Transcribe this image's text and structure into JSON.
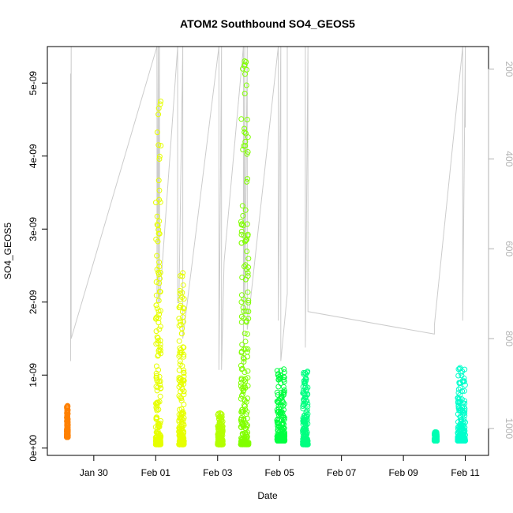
{
  "chart_data": {
    "type": "scatter",
    "title": "ATOM2 Southbound SO4_GEOS5",
    "xlabel": "Date",
    "ylabel": "SO4_GEOS5",
    "x_ticks": [
      "Jan 30",
      "Feb 01",
      "Feb 03",
      "Feb 05",
      "Feb 07",
      "Feb 09",
      "Feb 11"
    ],
    "y_ticks": [
      "0e+00",
      "1e-09",
      "2e-09",
      "3e-09",
      "4e-09",
      "5e-09"
    ],
    "right_axis_ticks": [
      "200",
      "400",
      "600",
      "800",
      "1000"
    ],
    "xlim": [
      "2017-01-28 12:00",
      "2017-02-11 18:00"
    ],
    "ylim": [
      -1e-10,
      5.5e-09
    ],
    "right_axis_label": "",
    "right_axis_range_reversed": [
      1060,
      150
    ],
    "grid": false,
    "legend": "none",
    "series": [
      {
        "color": "#FF8000",
        "clusters": [
          {
            "x_start": "2017-01-29 03:00",
            "x_end": "2017-01-29 04:00",
            "y_min": 1.5e-10,
            "y_max": 5.8e-10
          }
        ]
      },
      {
        "color": "#E6FF00",
        "clusters": [
          {
            "x_start": "2017-02-01 00:00",
            "x_end": "2017-02-01 04:00",
            "y_min": 5e-11,
            "y_max": 4.75e-09
          },
          {
            "x_start": "2017-02-01 18:00",
            "x_end": "2017-02-01 22:00",
            "y_min": 5e-11,
            "y_max": 2.4e-09
          }
        ]
      },
      {
        "color": "#B3FF00",
        "clusters": [
          {
            "x_start": "2017-02-03 00:00",
            "x_end": "2017-02-03 04:00",
            "y_min": 5e-11,
            "y_max": 4.8e-10
          }
        ]
      },
      {
        "color": "#80FF00",
        "clusters": [
          {
            "x_start": "2017-02-03 18:00",
            "x_end": "2017-02-04 00:00",
            "y_min": 5e-11,
            "y_max": 5.3e-09
          }
        ]
      },
      {
        "color": "#00FF40",
        "clusters": [
          {
            "x_start": "2017-02-04 22:00",
            "x_end": "2017-02-05 04:00",
            "y_min": 1e-10,
            "y_max": 1.08e-09
          }
        ]
      },
      {
        "color": "#00FF80",
        "clusters": [
          {
            "x_start": "2017-02-05 18:00",
            "x_end": "2017-02-05 22:00",
            "y_min": 5e-11,
            "y_max": 1.05e-09
          }
        ]
      },
      {
        "color": "#00FFB3",
        "clusters": [
          {
            "x_start": "2017-02-10 00:00",
            "x_end": "2017-02-10 02:00",
            "y_min": 1e-10,
            "y_max": 2.2e-10
          }
        ]
      },
      {
        "color": "#00FFCC",
        "clusters": [
          {
            "x_start": "2017-02-10 18:00",
            "x_end": "2017-02-11 00:00",
            "y_min": 1e-10,
            "y_max": 1.1e-09
          }
        ]
      }
    ],
    "pressure_profile": {
      "color": "#cccccc",
      "x": [
        "2017-01-29 06:00",
        "2017-01-29 06:00",
        "2017-01-29 06:30",
        "2017-01-29 06:30",
        "2017-02-01 01:00",
        "2017-02-01 01:00",
        "2017-02-01 02:00",
        "2017-02-01 02:00",
        "2017-02-01 03:00",
        "2017-02-01 03:00",
        "2017-02-01 17:00",
        "2017-02-01 17:00",
        "2017-02-01 18:00",
        "2017-02-01 18:00",
        "2017-02-01 21:00",
        "2017-02-01 21:00",
        "2017-02-03 01:00",
        "2017-02-03 01:00",
        "2017-02-03 03:00",
        "2017-02-03 03:00",
        "2017-02-03 05:00",
        "2017-02-03 20:00",
        "2017-02-03 20:00",
        "2017-02-03 21:00",
        "2017-02-03 21:00",
        "2017-02-03 23:00",
        "2017-02-03 23:00",
        "2017-02-04 23:00",
        "2017-02-04 23:00",
        "2017-02-05 01:00",
        "2017-02-05 01:00",
        "2017-02-05 06:00",
        "2017-02-05 06:00",
        "2017-02-05 20:00",
        "2017-02-05 20:00",
        "2017-02-05 22:00",
        "2017-02-05 22:00",
        "2017-02-10 00:00",
        "2017-02-10 00:00",
        "2017-02-10 22:00",
        "2017-02-10 22:00",
        "2017-02-11 00:00",
        "2017-02-11 00:00"
      ],
      "y": [
        210,
        850,
        150,
        800,
        150,
        720,
        150,
        720,
        150,
        720,
        150,
        720,
        720,
        720,
        150,
        800,
        150,
        870,
        150,
        870,
        630,
        150,
        870,
        150,
        750,
        150,
        780,
        150,
        760,
        150,
        850,
        700,
        150,
        150,
        820,
        150,
        740,
        790,
        770,
        150,
        760,
        150,
        330
      ]
    }
  }
}
